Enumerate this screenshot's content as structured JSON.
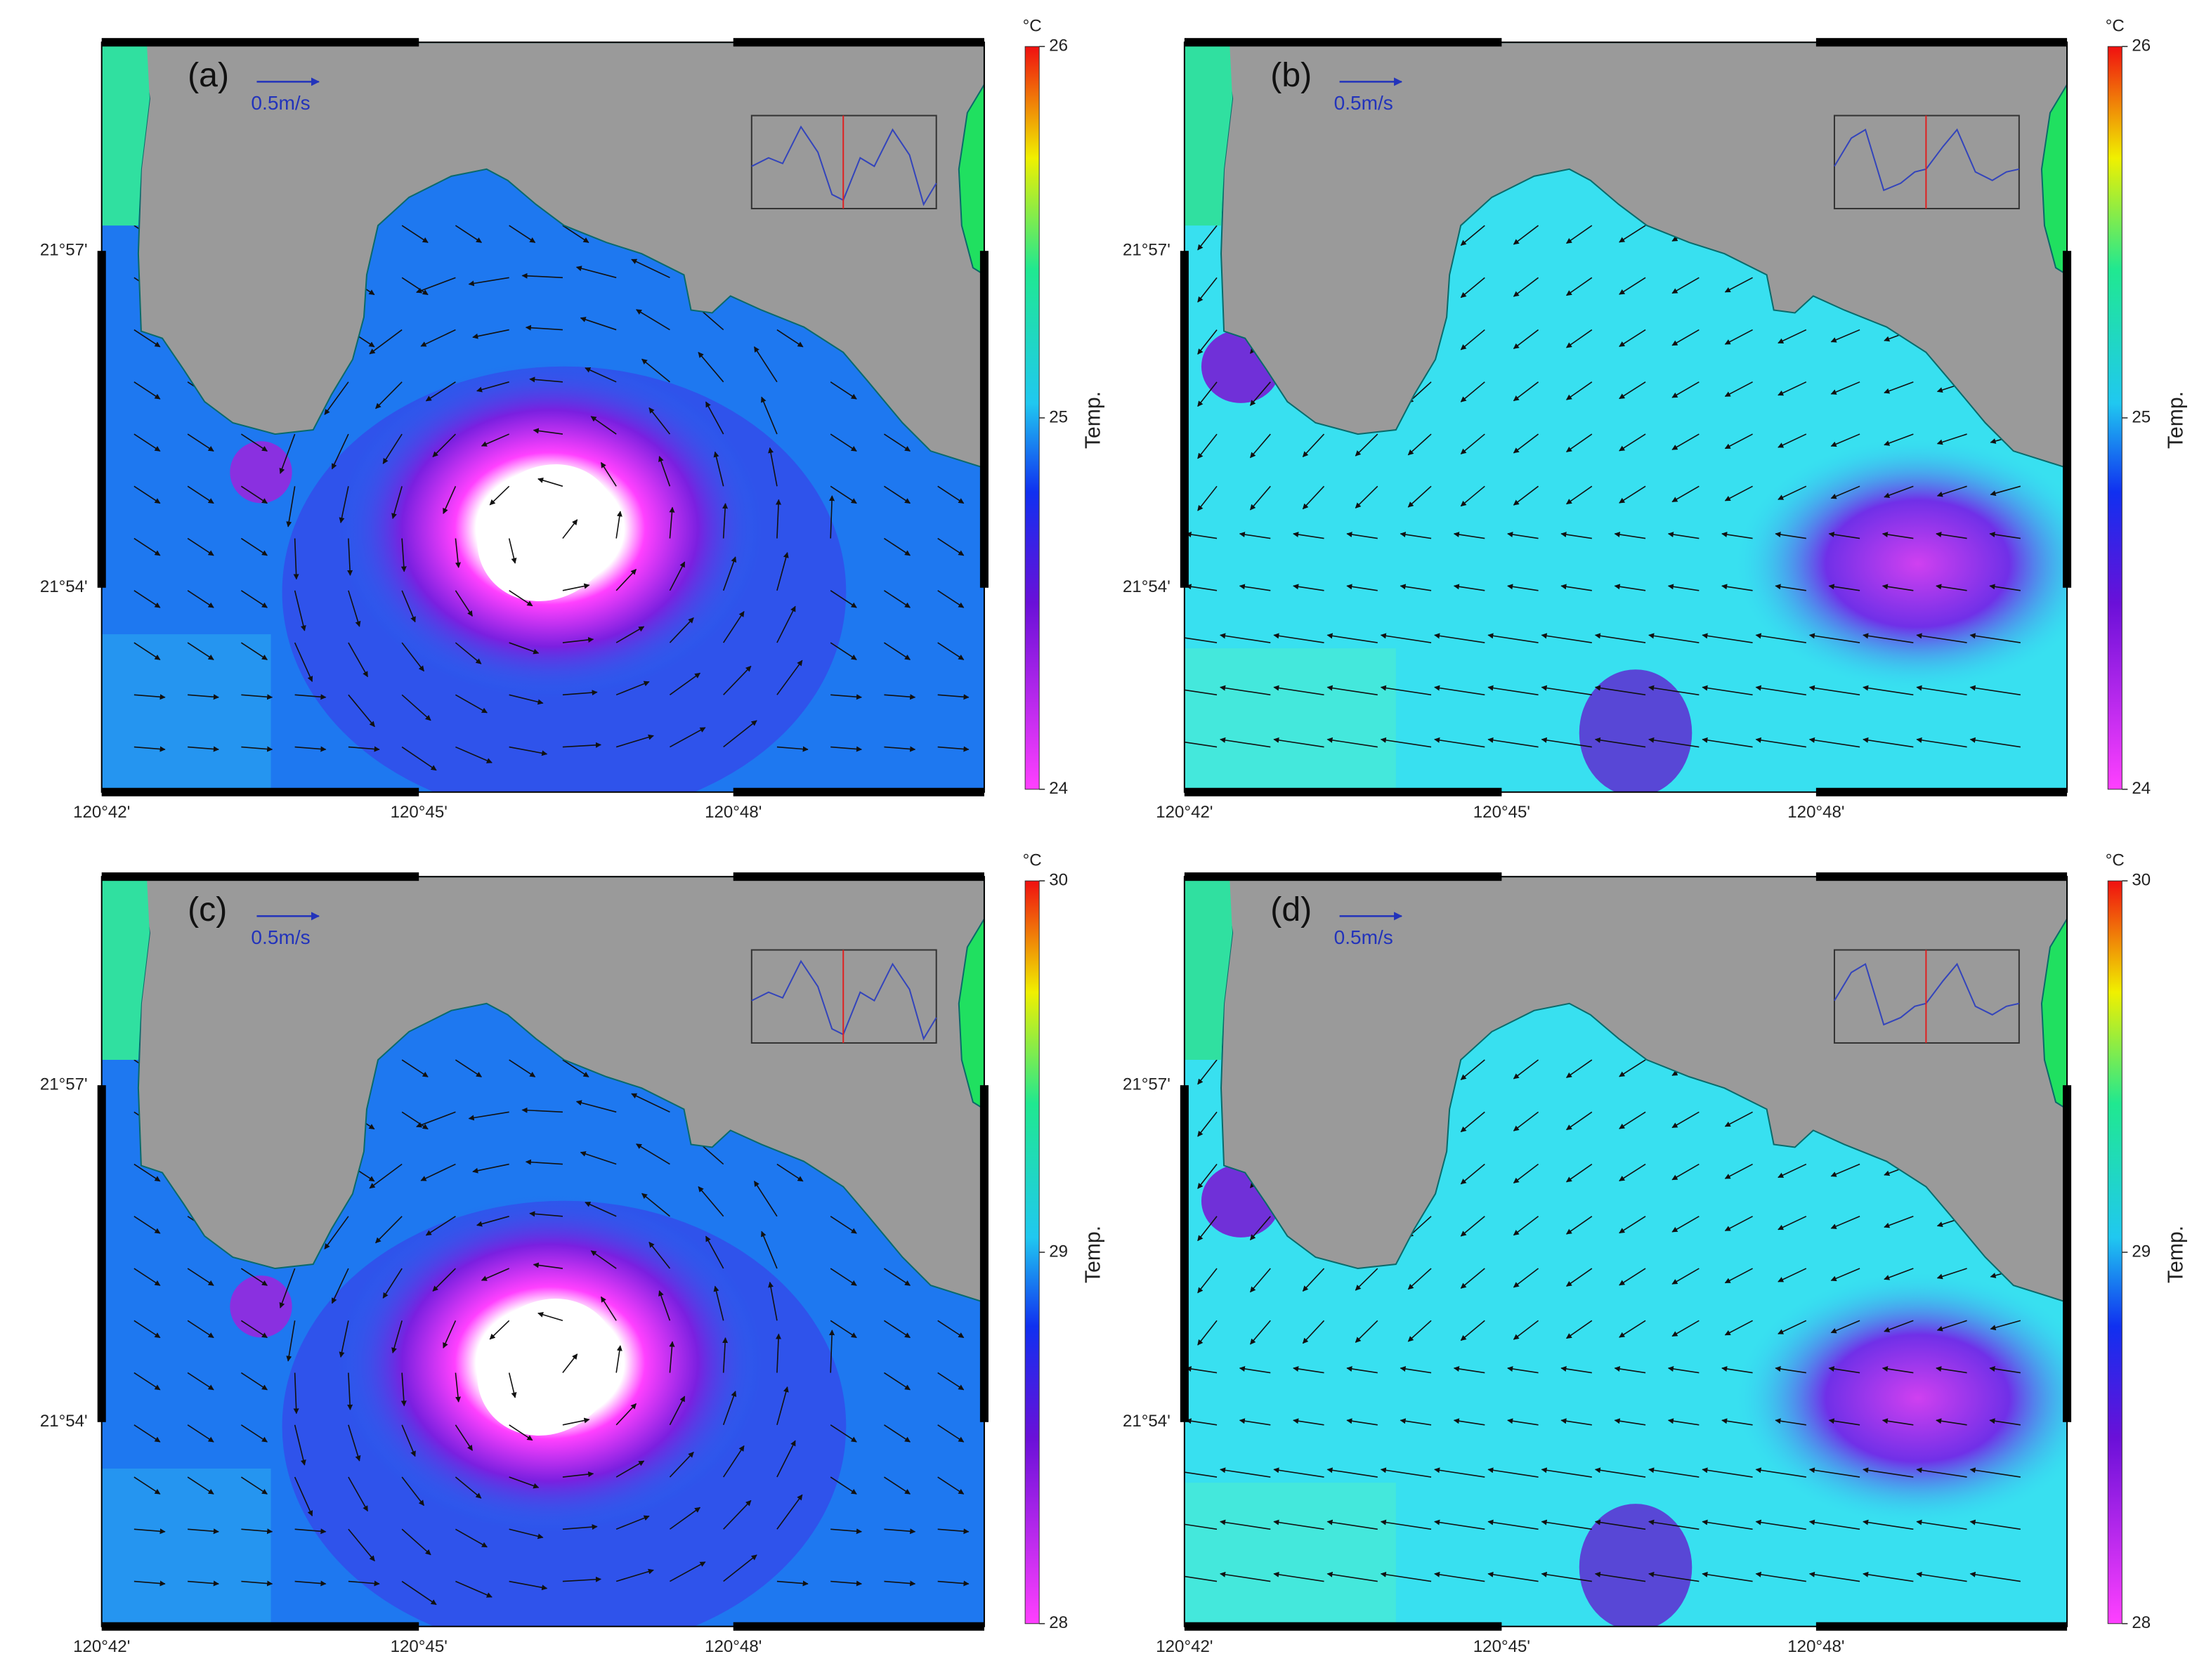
{
  "panels": [
    {
      "label": "(a)",
      "scale_label": "0.5m/s",
      "y_labels": [
        "21°57'",
        "21°54'"
      ],
      "x_labels": [
        "120°42'",
        "120°45'",
        "120°48'"
      ],
      "colorbar": {
        "unit": "°C",
        "title": "Temp.",
        "ticks": [
          26,
          25,
          24
        ]
      }
    },
    {
      "label": "(b)",
      "scale_label": "0.5m/s",
      "y_labels": [
        "21°57'",
        "21°54'"
      ],
      "x_labels": [
        "120°42'",
        "120°45'",
        "120°48'"
      ],
      "colorbar": {
        "unit": "°C",
        "title": "Temp.",
        "ticks": [
          26,
          25,
          24
        ]
      }
    },
    {
      "label": "(c)",
      "scale_label": "0.5m/s",
      "y_labels": [
        "21°57'",
        "21°54'"
      ],
      "x_labels": [
        "120°42'",
        "120°45'",
        "120°48'"
      ],
      "colorbar": {
        "unit": "°C",
        "title": "Temp.",
        "ticks": [
          30,
          29,
          28
        ]
      }
    },
    {
      "label": "(d)",
      "scale_label": "0.5m/s",
      "y_labels": [
        "21°57'",
        "21°54'"
      ],
      "x_labels": [
        "120°42'",
        "120°45'",
        "120°48'"
      ],
      "colorbar": {
        "unit": "°C",
        "title": "Temp.",
        "ticks": [
          30,
          29,
          28
        ]
      }
    }
  ]
}
